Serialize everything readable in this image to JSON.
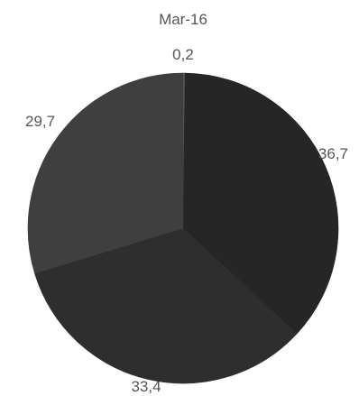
{
  "chart_data": {
    "type": "pie",
    "title": "Mar-16",
    "slices": [
      {
        "value": 0.2,
        "label": "0,2",
        "color": "#5c5c5c"
      },
      {
        "value": 36.7,
        "label": "36,7",
        "color": "#262626"
      },
      {
        "value": 33.4,
        "label": "33,4",
        "color": "#2e2e2e"
      },
      {
        "value": 29.7,
        "label": "29,7",
        "color": "#3f3f3f"
      }
    ],
    "start": "12 o'clock",
    "direction": "clockwise",
    "legend": "none"
  }
}
